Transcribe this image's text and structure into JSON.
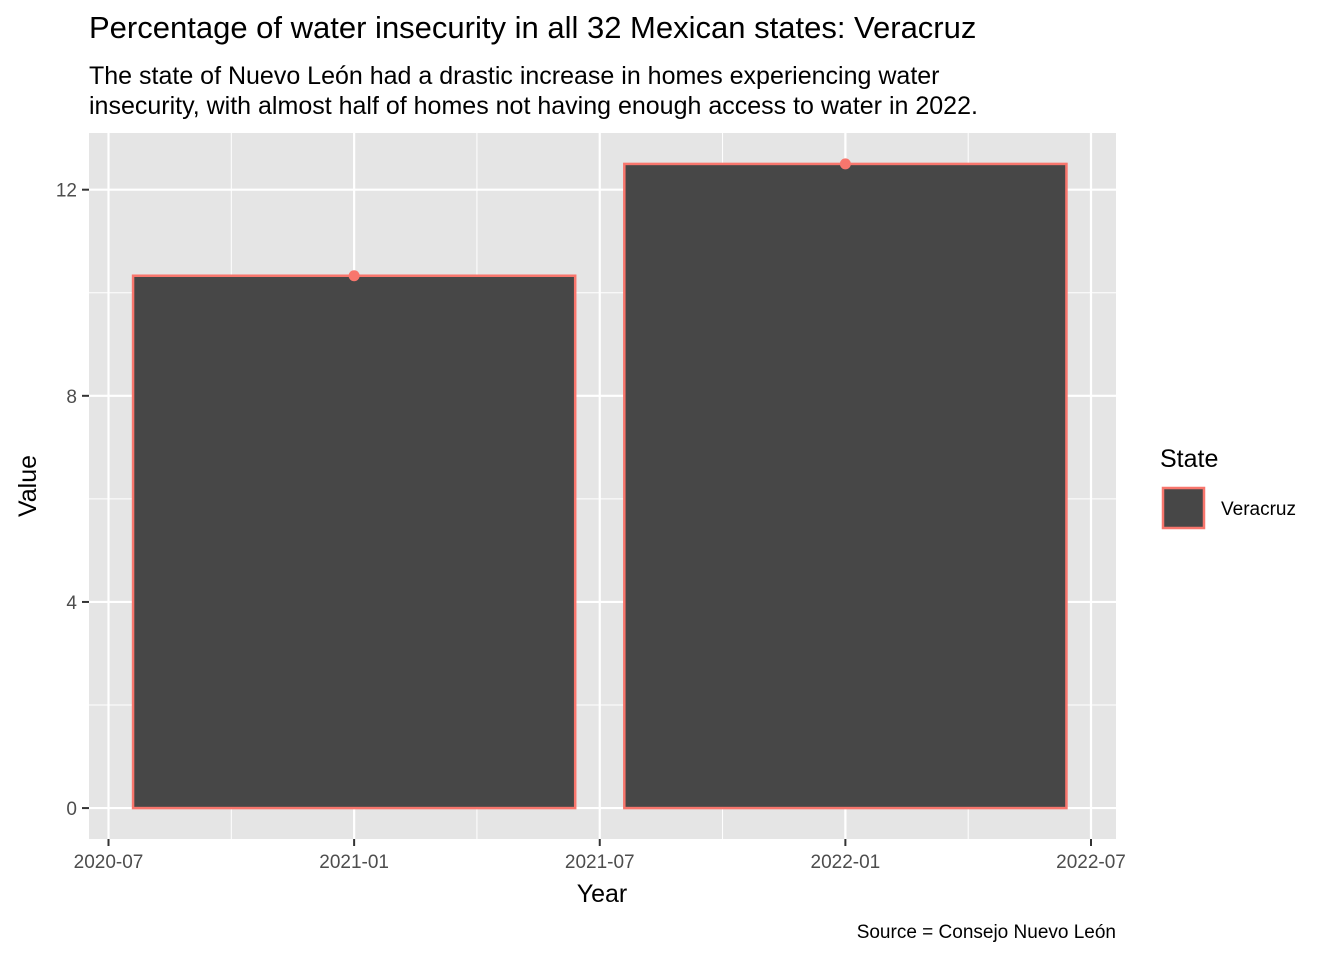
{
  "chart_data": {
    "type": "bar",
    "title": "Percentage of water insecurity in all 32 Mexican states: Veracruz",
    "subtitle": [
      "The state of Nuevo León had a drastic increase in homes experiencing water",
      "insecurity, with almost half of homes not having enough access to water in 2022."
    ],
    "caption": "Source = Consejo Nuevo León",
    "xlabel": "Year",
    "ylabel": "Value",
    "categories": [
      "2021-01",
      "2022-01"
    ],
    "series": [
      {
        "name": "Veracruz",
        "values": [
          10.33,
          12.5
        ]
      }
    ],
    "x_ticks": [
      "2020-07",
      "2021-01",
      "2021-07",
      "2022-01",
      "2022-07"
    ],
    "y_ticks": [
      0,
      4,
      8,
      12
    ],
    "ylim": [
      -0.6,
      13.1
    ],
    "grid": true,
    "legend": {
      "title": "State",
      "placement": "right"
    },
    "colors": {
      "panel_background": "#E5E5E5",
      "bar_fill": "#474747",
      "bar_outline": "#F8766D",
      "point": "#F8766D",
      "gridline": "#FFFFFF"
    }
  }
}
